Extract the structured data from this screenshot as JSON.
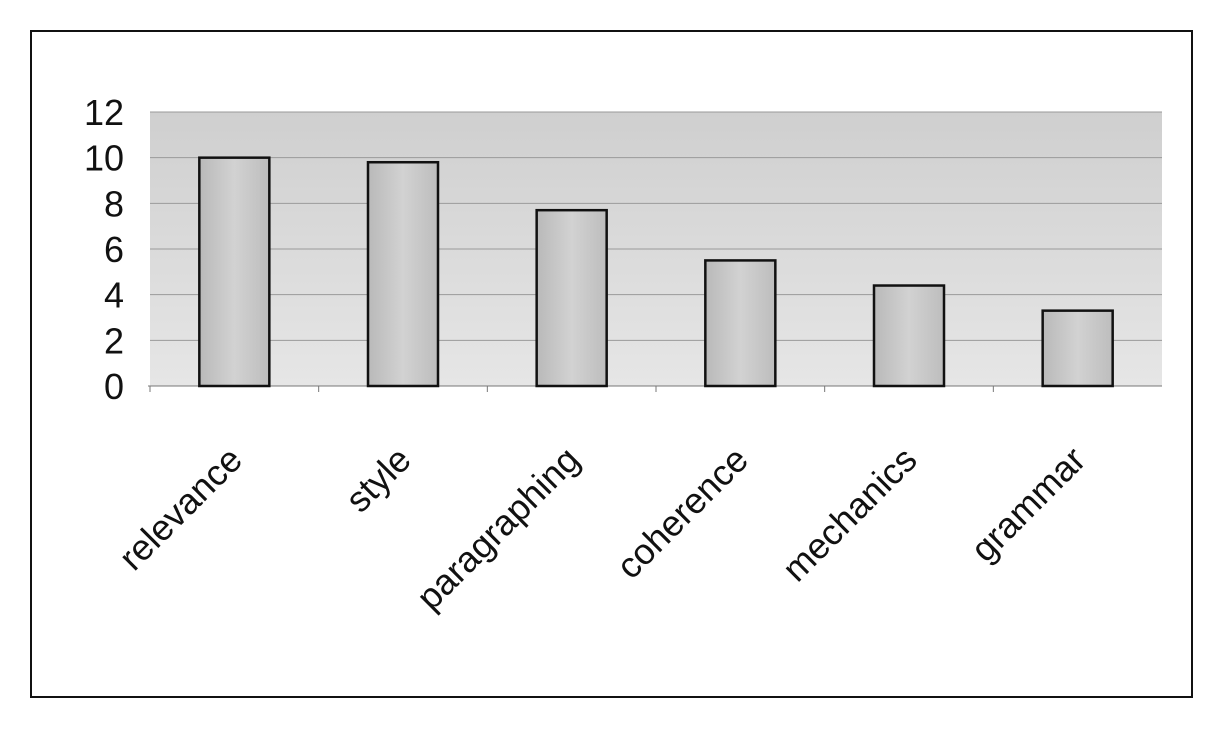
{
  "chart_data": {
    "type": "bar",
    "categories": [
      "relevance",
      "style",
      "paragraphing",
      "coherence",
      "mechanics",
      "grammar"
    ],
    "values": [
      10,
      9.8,
      7.7,
      5.5,
      4.4,
      3.3
    ],
    "yticks": [
      "0",
      "2",
      "4",
      "6",
      "8",
      "10",
      "12"
    ],
    "ylim": [
      0,
      12
    ],
    "title": "",
    "xlabel": "",
    "ylabel": "",
    "grid": true,
    "legend": "none",
    "colors": {
      "plot_background": "#dcdcdc",
      "bar_fill": "#c8c8c8",
      "bar_stroke": "#111111",
      "gridline": "#9a9a9a"
    }
  }
}
